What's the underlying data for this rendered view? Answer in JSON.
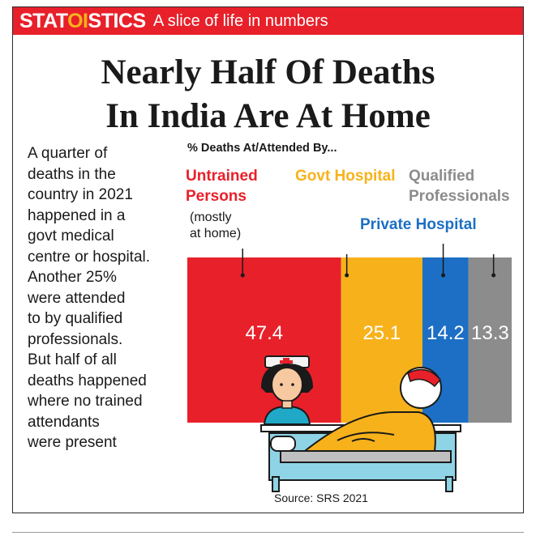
{
  "header": {
    "brand_left": "STAT",
    "brand_mid": "OI",
    "brand_right": "STICS",
    "tagline": "A slice of life in numbers"
  },
  "headline": {
    "line1": "Nearly Half Of Deaths",
    "line2": "In India Are At Home"
  },
  "intro": [
    "A quarter of",
    "deaths in the",
    "country in 2021",
    "happened in a",
    "govt medical",
    "centre or hospital.",
    "Another 25%",
    "were attended",
    "to by qualified",
    "professionals.",
    "But half of all",
    "deaths happened",
    "where no trained",
    "attendants",
    "were present"
  ],
  "source": "Source: SRS 2021",
  "colors": {
    "red": "#e8202a",
    "yellow": "#f7b21b",
    "blue": "#1c6fc4",
    "gray": "#8c8c8c"
  },
  "chart_data": {
    "type": "bar",
    "subtitle": "% Deaths At/Attended By...",
    "categories": [
      {
        "label_lines": [
          "Untrained",
          "Persons"
        ],
        "note_lines": [
          "(mostly",
          "at home)"
        ],
        "value": 47.4,
        "value_label": "47.4",
        "color": "#e8202a"
      },
      {
        "label_lines": [
          "Govt Hospital"
        ],
        "note_lines": [],
        "value": 25.1,
        "value_label": "25.1",
        "color": "#f7b21b"
      },
      {
        "label_lines": [
          "Private Hospital"
        ],
        "note_lines": [],
        "value": 14.2,
        "value_label": "14.2",
        "color": "#1c6fc4"
      },
      {
        "label_lines": [
          "Qualified",
          "Professionals"
        ],
        "note_lines": [],
        "value": 13.3,
        "value_label": "13.3",
        "color": "#8c8c8c"
      }
    ],
    "stacked_horizontal": true,
    "total": 100
  }
}
